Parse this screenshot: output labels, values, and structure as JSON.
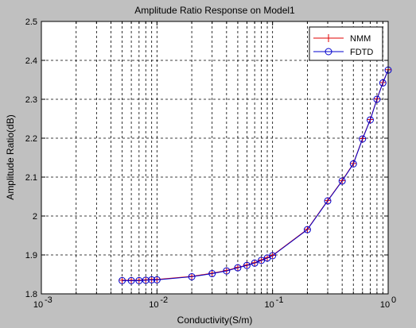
{
  "chart_data": {
    "type": "line",
    "title": "Amplitude Ratio Response on Model1",
    "xlabel": "Conductivity(S/m)",
    "ylabel": "Amplitude Ratio(dB)",
    "xscale": "log",
    "xlim": [
      0.001,
      1
    ],
    "ylim": [
      1.8,
      2.5
    ],
    "grid": true,
    "legend_position": "top-right",
    "x": [
      0.005,
      0.006,
      0.007,
      0.008,
      0.009,
      0.01,
      0.02,
      0.03,
      0.04,
      0.05,
      0.06,
      0.07,
      0.08,
      0.09,
      0.1,
      0.2,
      0.3,
      0.4,
      0.5,
      0.6,
      0.7,
      0.8,
      0.9,
      1.0
    ],
    "series": [
      {
        "name": "NMM",
        "color": "#e00000",
        "marker": "plus",
        "values": [
          1.835,
          1.835,
          1.835,
          1.836,
          1.837,
          1.837,
          1.845,
          1.853,
          1.86,
          1.868,
          1.874,
          1.88,
          1.887,
          1.893,
          1.899,
          1.966,
          2.04,
          2.091,
          2.135,
          2.199,
          2.248,
          2.301,
          2.343,
          2.376
        ]
      },
      {
        "name": "FDTD",
        "color": "#0000cc",
        "marker": "circle",
        "values": [
          1.834,
          1.834,
          1.834,
          1.835,
          1.836,
          1.836,
          1.844,
          1.852,
          1.859,
          1.867,
          1.873,
          1.879,
          1.886,
          1.892,
          1.898,
          1.965,
          2.039,
          2.09,
          2.134,
          2.198,
          2.247,
          2.3,
          2.342,
          2.375
        ]
      }
    ],
    "xticks": [
      0.001,
      0.01,
      0.1,
      1
    ],
    "xtick_labels": [
      {
        "base": "10",
        "exp": "-3"
      },
      {
        "base": "10",
        "exp": "-2"
      },
      {
        "base": "10",
        "exp": "-1"
      },
      {
        "base": "10",
        "exp": "0"
      }
    ],
    "yticks": [
      1.8,
      1.9,
      2.0,
      2.1,
      2.2,
      2.3,
      2.4,
      2.5
    ],
    "ytick_labels": [
      "1.8",
      "1.9",
      "2",
      "2.1",
      "2.2",
      "2.3",
      "2.4",
      "2.5"
    ]
  },
  "colors": {
    "figure_background": "#c0c0c0",
    "axes_background": "#ffffff"
  }
}
